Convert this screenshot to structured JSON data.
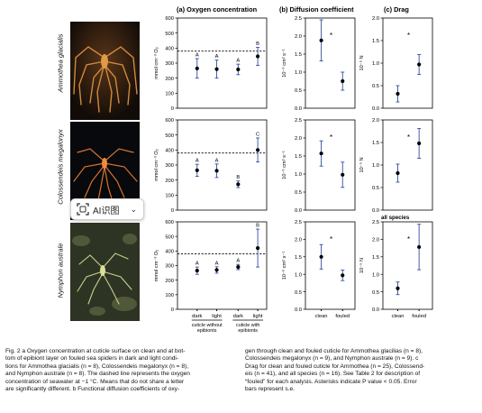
{
  "panel_headers": {
    "a": "(a) Oxygen concentration",
    "b": "(b) Diffusion coefficient",
    "c": "(c) Drag"
  },
  "species": [
    "Ammothea glacialis",
    "Colossendeis megalonyx",
    "Nymphon australe"
  ],
  "overlay_chip": {
    "label": "AI识图"
  },
  "x_groups": {
    "oxygen_conditions": [
      "dark",
      "light",
      "dark",
      "light"
    ],
    "oxygen_brackets": [
      "cuticle without epibionts",
      "cuticle with epibionts"
    ],
    "diffusion_conditions": [
      "clean",
      "fouled"
    ],
    "drag_conditions": [
      "clean",
      "fouled"
    ]
  },
  "y_labels": {
    "oxygen": "mmol cm⁻³ O₂",
    "diffusion": "10⁻⁶ cm² s⁻¹",
    "drag": "10⁻⁵ N"
  },
  "colors": {
    "error_bar": "#2f4f9e",
    "point": "#000000",
    "dashed": "#000000"
  },
  "chart_data": [
    {
      "type": "scatter",
      "panel": "a",
      "species": "Ammothea glacialis",
      "categories": [
        "dark",
        "light",
        "dark",
        "light"
      ],
      "y": [
        265,
        260,
        258,
        345
      ],
      "err": [
        65,
        60,
        35,
        60
      ],
      "letters": [
        "A",
        "A",
        "A",
        "B"
      ],
      "reference_line": 380,
      "ylim": [
        0,
        600
      ],
      "yticks": [
        0,
        100,
        200,
        300,
        400,
        500,
        600
      ]
    },
    {
      "type": "scatter",
      "panel": "b",
      "species": "Ammothea glacialis",
      "categories": [
        "clean",
        "fouled"
      ],
      "y": [
        1.88,
        0.75
      ],
      "err": [
        0.57,
        0.25
      ],
      "asterisk": "*",
      "ylim": [
        0,
        2.5
      ],
      "yticks": [
        0.0,
        0.5,
        1.0,
        1.5,
        2.0,
        2.5
      ]
    },
    {
      "type": "scatter",
      "panel": "c",
      "species": "Ammothea glacialis",
      "categories": [
        "clean",
        "fouled"
      ],
      "y": [
        0.32,
        0.97
      ],
      "err": [
        0.18,
        0.22
      ],
      "asterisk": "*",
      "ylim": [
        0,
        2
      ],
      "yticks": [
        0.0,
        0.5,
        1.0,
        1.5,
        2.0
      ]
    },
    {
      "type": "scatter",
      "panel": "a",
      "species": "Colossendeis megalonyx",
      "categories": [
        "dark",
        "light",
        "dark",
        "light"
      ],
      "y": [
        265,
        262,
        172,
        400
      ],
      "err": [
        40,
        45,
        22,
        80
      ],
      "letters": [
        "A",
        "A",
        "B",
        "C"
      ],
      "reference_line": 380,
      "ylim": [
        0,
        600
      ],
      "yticks": [
        0,
        100,
        200,
        300,
        400,
        500,
        600
      ]
    },
    {
      "type": "scatter",
      "panel": "b",
      "species": "Colossendeis megalonyx",
      "categories": [
        "clean",
        "fouled"
      ],
      "y": [
        1.57,
        0.98
      ],
      "err": [
        0.35,
        0.35
      ],
      "asterisk": "*",
      "ylim": [
        0,
        2.5
      ],
      "yticks": [
        0.0,
        0.5,
        1.0,
        1.5,
        2.0,
        2.5
      ]
    },
    {
      "type": "scatter",
      "panel": "c",
      "species": "Colossendeis megalonyx",
      "categories": [
        "clean",
        "fouled"
      ],
      "y": [
        0.82,
        1.48
      ],
      "err": [
        0.2,
        0.33
      ],
      "asterisk": "*",
      "ylim": [
        0,
        2
      ],
      "yticks": [
        0.0,
        0.5,
        1.0,
        1.5,
        2.0
      ]
    },
    {
      "type": "scatter",
      "panel": "a",
      "species": "Nymphon australe",
      "categories": [
        "dark",
        "light",
        "dark",
        "light"
      ],
      "y": [
        265,
        270,
        290,
        420
      ],
      "err": [
        25,
        22,
        18,
        130
      ],
      "letters": [
        "A",
        "A",
        "A",
        "B"
      ],
      "reference_line": 380,
      "ylim": [
        0,
        600
      ],
      "yticks": [
        0,
        100,
        200,
        300,
        400,
        500,
        600
      ]
    },
    {
      "type": "scatter",
      "panel": "b",
      "species": "Nymphon australe",
      "categories": [
        "clean",
        "fouled"
      ],
      "y": [
        1.5,
        0.97
      ],
      "err": [
        0.35,
        0.15
      ],
      "asterisk": "*",
      "ylim": [
        0,
        2.5
      ],
      "yticks": [
        0.0,
        0.5,
        1.0,
        1.5,
        2.0,
        2.5
      ]
    },
    {
      "type": "scatter",
      "panel": "c",
      "species": "all species",
      "categories": [
        "clean",
        "fouled"
      ],
      "y": [
        0.6,
        1.78
      ],
      "err": [
        0.18,
        0.65
      ],
      "asterisk": "*",
      "title": "all species",
      "ylim": [
        0,
        2.5
      ],
      "yticks": [
        0.0,
        0.5,
        1.0,
        1.5,
        2.0,
        2.5
      ]
    }
  ],
  "caption": {
    "left": [
      "Fig. 2  a Oxygen concentration at cuticle surface on clean and at bot-",
      "tom of epibiont layer on fouled sea spiders in dark and light condi-",
      "tions for Ammothea glacialis (n = 8), Colossendeis megalonyx (n = 8),",
      "and Nymphon australe (n = 8). The dashed line represents the oxygen",
      "concentration of seawater at −1 °C. Means that do not share a letter",
      "are significantly different. b Functional diffusion coefficients of oxy-"
    ],
    "right": [
      "gen through clean and fouled cuticle for Ammothea glacilias (n = 8),",
      "Colossendeis megalonyx (n = 9), and Nymphon australe (n = 9). c",
      "Drag for clean and fouled cuticle for Ammothea (n = 25), Colossend-",
      "eis (n = 41), and all species (n = 16). See Table 2 for description of",
      "“fouled” for each analysis. Asterisks indicate P value < 0.05. Error",
      "bars represent s.e."
    ]
  }
}
